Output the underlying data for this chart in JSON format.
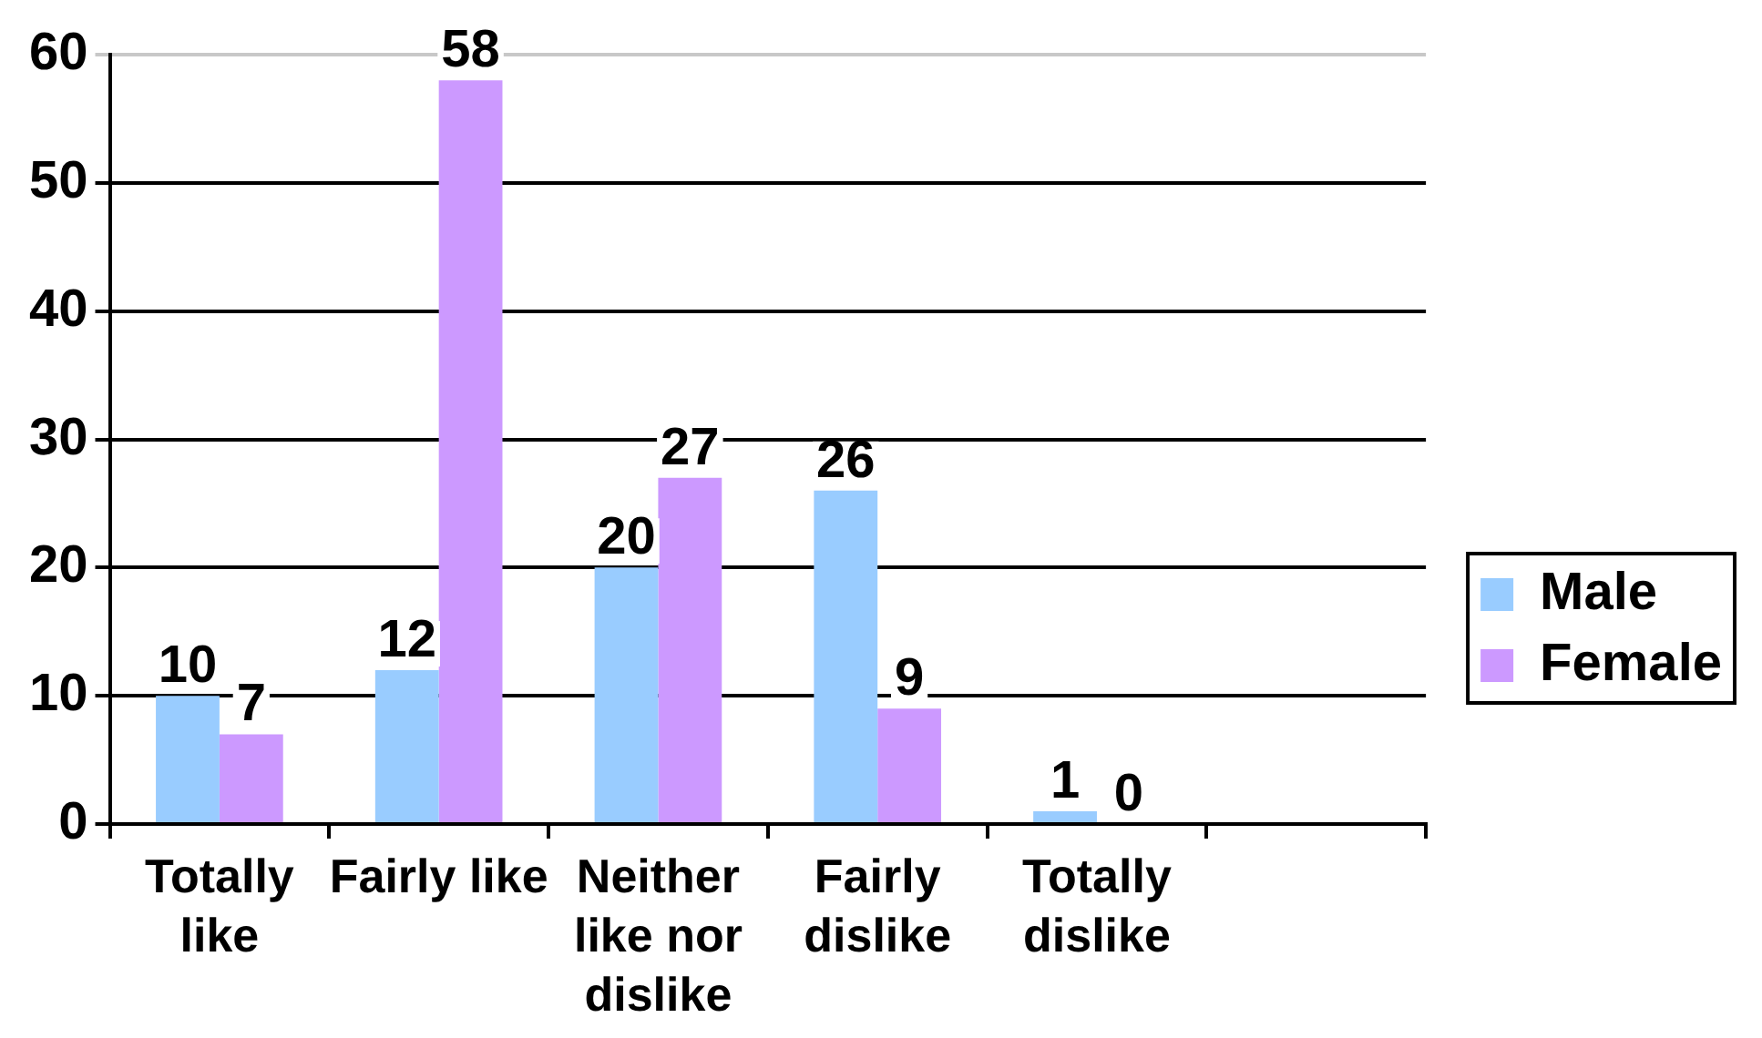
{
  "chart_data": {
    "type": "bar",
    "categories": [
      "Totally like",
      "Fairly like",
      "Neither like nor dislike",
      "Fairly dislike",
      "Totally dislike",
      null
    ],
    "series": [
      {
        "name": "Male",
        "color": "#99ccff",
        "values": [
          10,
          12,
          20,
          26,
          1,
          null
        ]
      },
      {
        "name": "Female",
        "color": "#cc99ff",
        "values": [
          7,
          58,
          27,
          9,
          0,
          null
        ]
      }
    ],
    "ylim": [
      0,
      60
    ],
    "yticks": [
      0,
      10,
      20,
      30,
      40,
      50,
      60
    ],
    "grid": "y",
    "legend": "right",
    "data_labels": true
  }
}
